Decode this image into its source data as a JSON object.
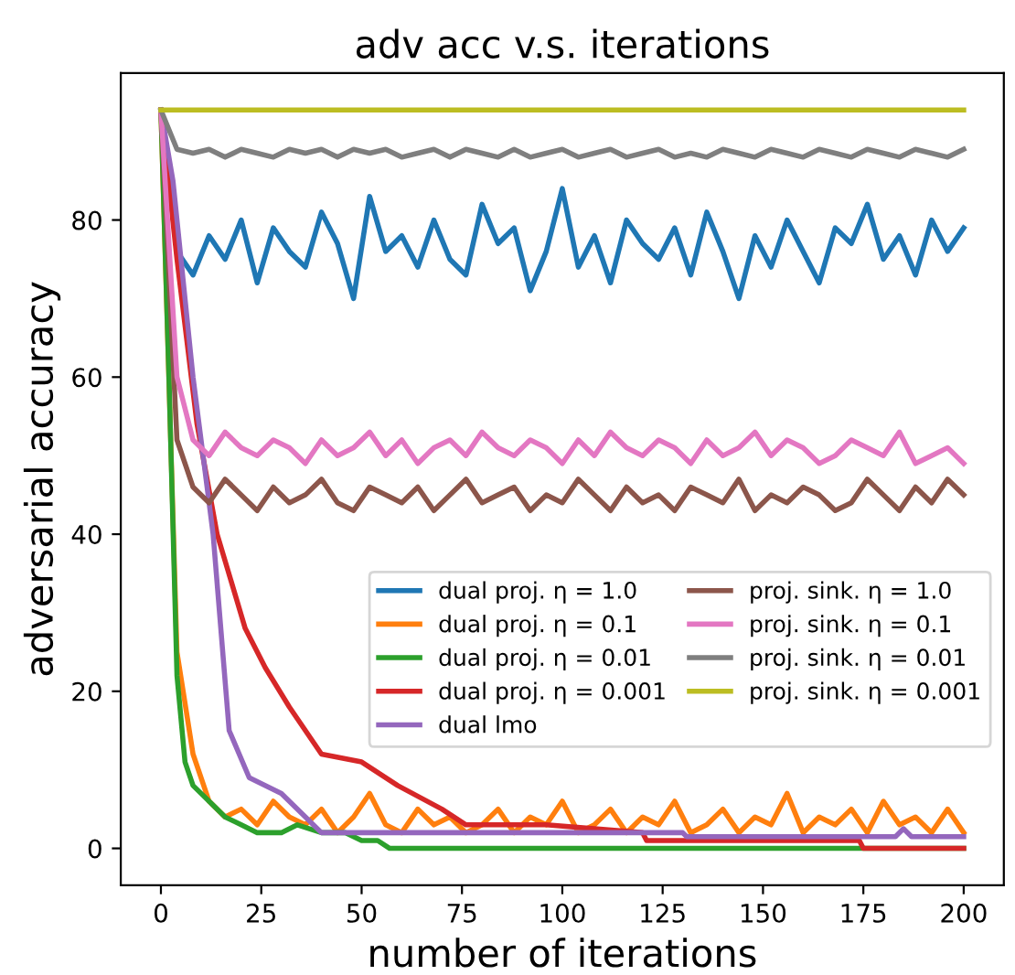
{
  "chart_data": {
    "type": "line",
    "title": "adv acc v.s. iterations",
    "xlabel": "number of iterations",
    "ylabel": "adversarial accuracy",
    "x": [
      0,
      4,
      8,
      12,
      16,
      20,
      24,
      28,
      32,
      36,
      40,
      44,
      48,
      52,
      56,
      60,
      64,
      68,
      72,
      76,
      80,
      84,
      88,
      92,
      96,
      100,
      104,
      108,
      112,
      116,
      120,
      124,
      128,
      132,
      136,
      140,
      144,
      148,
      152,
      156,
      160,
      164,
      168,
      172,
      176,
      180,
      184,
      188,
      192,
      196,
      200
    ],
    "xlim": [
      -10,
      210
    ],
    "ylim": [
      -4.7,
      98.7
    ],
    "xticks": [
      0,
      25,
      50,
      75,
      100,
      125,
      150,
      175,
      200
    ],
    "yticks": [
      0,
      20,
      40,
      60,
      80
    ],
    "grid": false,
    "legend": "right",
    "series": [
      {
        "name": "dual proj. η = 1.0",
        "color": "#1f77b4",
        "values": [
          94,
          76,
          73,
          78,
          75,
          80,
          72,
          79,
          76,
          74,
          81,
          77,
          70,
          83,
          76,
          78,
          74,
          80,
          75,
          73,
          82,
          77,
          79,
          71,
          76,
          84,
          74,
          78,
          72,
          80,
          77,
          75,
          79,
          73,
          81,
          76,
          70,
          78,
          74,
          80,
          76,
          72,
          79,
          77,
          82,
          75,
          78,
          73,
          80,
          76,
          79
        ]
      },
      {
        "name": "dual proj. η = 0.1",
        "color": "#ff7f0e",
        "values": [
          94,
          25,
          12,
          6,
          4,
          5,
          3,
          6,
          4,
          3,
          5,
          2,
          4,
          7,
          3,
          2,
          5,
          3,
          4,
          2,
          3,
          5,
          2,
          4,
          3,
          6,
          2,
          3,
          5,
          2,
          4,
          3,
          6,
          2,
          3,
          5,
          2,
          4,
          3,
          7,
          2,
          4,
          3,
          5,
          2,
          6,
          3,
          4,
          2,
          5,
          2
        ]
      },
      {
        "name": "dual proj. η = 0.01",
        "color": "#2ca02c",
        "x": [
          0,
          2,
          4,
          6,
          8,
          12,
          16,
          20,
          24,
          30,
          34,
          40,
          46,
          50,
          54,
          57,
          200
        ],
        "values": [
          94,
          60,
          22,
          11,
          8,
          6,
          4,
          3,
          2,
          2,
          3,
          2,
          2,
          1,
          1,
          0,
          0
        ]
      },
      {
        "name": "dual proj. η = 0.001",
        "color": "#d62728",
        "x": [
          0,
          4,
          9,
          14,
          21,
          26,
          32,
          40,
          50,
          59,
          70,
          76,
          96,
          120,
          121,
          174,
          175,
          200
        ],
        "values": [
          94,
          75,
          54,
          40,
          28,
          23,
          18,
          12,
          11,
          8,
          5,
          3,
          3,
          2,
          1,
          1,
          0,
          0
        ]
      },
      {
        "name": "dual lmo",
        "color": "#9467bd",
        "x": [
          0,
          3,
          8,
          13,
          17,
          22,
          30,
          36,
          40,
          130,
          131,
          183,
          185,
          187,
          200
        ],
        "values": [
          94,
          85,
          60,
          40,
          15,
          9,
          7,
          4,
          2,
          2,
          1.5,
          1.5,
          2.5,
          1.5,
          1.5
        ]
      },
      {
        "name": "proj. sink. η = 1.0",
        "color": "#8c564b",
        "values": [
          94,
          52,
          46,
          44,
          47,
          45,
          43,
          46,
          44,
          45,
          47,
          44,
          43,
          46,
          45,
          44,
          46,
          43,
          45,
          47,
          44,
          45,
          46,
          43,
          45,
          44,
          47,
          45,
          43,
          46,
          44,
          45,
          43,
          46,
          45,
          44,
          47,
          43,
          45,
          44,
          46,
          45,
          43,
          44,
          47,
          45,
          43,
          46,
          44,
          47,
          45
        ]
      },
      {
        "name": "proj. sink. η = 0.1",
        "color": "#e377c2",
        "values": [
          94,
          60,
          52,
          50,
          53,
          51,
          50,
          52,
          51,
          49,
          52,
          50,
          51,
          53,
          50,
          52,
          49,
          51,
          52,
          50,
          53,
          51,
          50,
          52,
          51,
          49,
          52,
          50,
          53,
          51,
          50,
          52,
          51,
          49,
          52,
          50,
          51,
          53,
          50,
          52,
          51,
          49,
          50,
          52,
          51,
          50,
          53,
          49,
          50,
          51,
          49
        ]
      },
      {
        "name": "proj. sink. η = 0.01",
        "color": "#7f7f7f",
        "values": [
          94,
          89,
          88.5,
          89,
          88,
          89,
          88.5,
          88,
          89,
          88.5,
          89,
          88,
          89,
          88.5,
          89,
          88,
          88.5,
          89,
          88,
          89,
          88.5,
          88,
          89,
          88,
          88.5,
          89,
          88,
          88.5,
          89,
          88,
          88.5,
          89,
          88,
          88.5,
          88,
          89,
          88.5,
          88,
          89,
          88.5,
          88,
          89,
          88.5,
          88,
          89,
          88.5,
          88,
          89,
          88.5,
          88,
          89
        ]
      },
      {
        "name": "proj. sink. η = 0.001",
        "color": "#bcbd22",
        "x": [
          0,
          200
        ],
        "values": [
          94,
          94
        ]
      }
    ]
  }
}
